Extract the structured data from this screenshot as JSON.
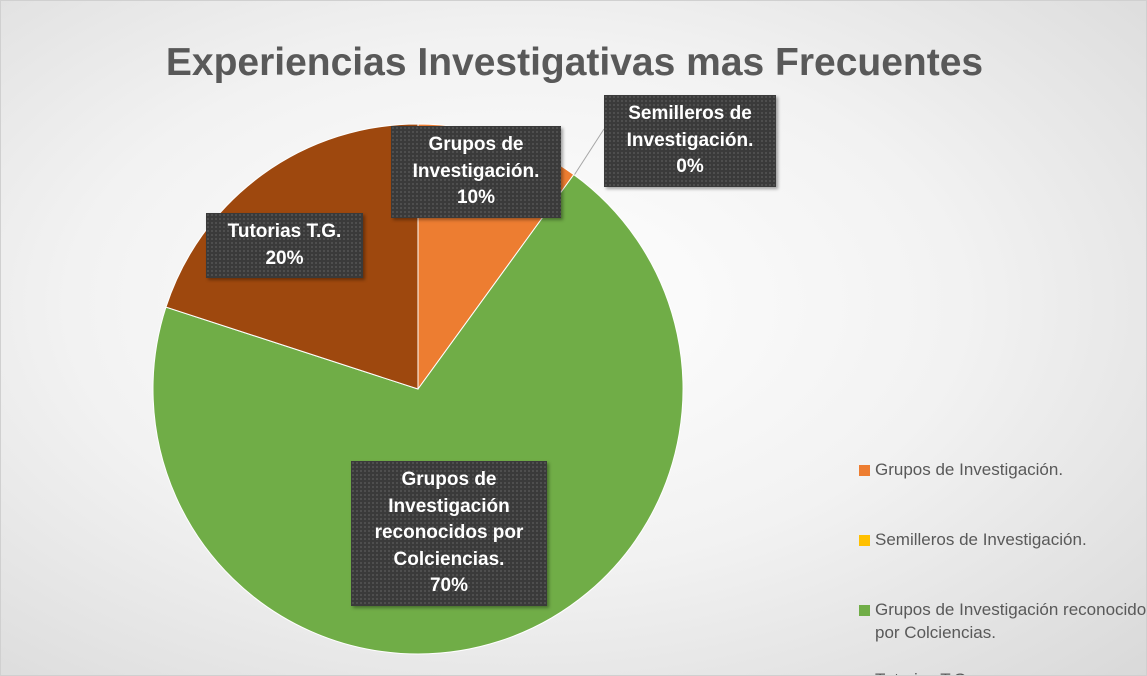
{
  "chart_data": {
    "type": "pie",
    "title": "Experiencias Investigativas mas Frecuentes",
    "categories": [
      "Grupos de Investigación.",
      "Semilleros de Investigación.",
      "Grupos de Investigación reconocidos por Colciencias.",
      "Tutorias T.G."
    ],
    "values": [
      10,
      0,
      70,
      20
    ],
    "value_labels": [
      "10%",
      "0%",
      "70%",
      "20%"
    ],
    "colors": [
      "#ED7D31",
      "#FFC000",
      "#70AD47",
      "#9E480E"
    ],
    "legend": "right"
  }
}
